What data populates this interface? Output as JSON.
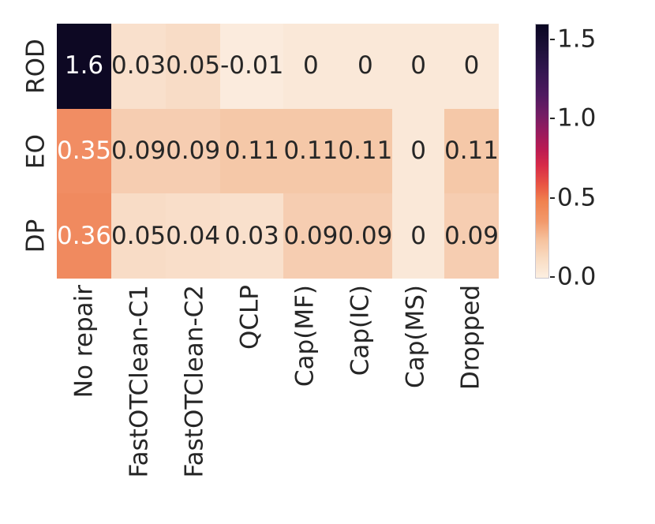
{
  "figure": {
    "background": "#ffffff",
    "text_color": "#262626",
    "annotation_light_color": "#ffffff"
  },
  "chart_data": {
    "type": "heatmap",
    "title": "",
    "xlabel": "",
    "ylabel": "",
    "rows": [
      "ROD",
      "EO",
      "DP"
    ],
    "columns": [
      "No repair",
      "FastOTClean-C1",
      "FastOTClean-C2",
      "QCLP",
      "Cap(MF)",
      "Cap(IC)",
      "Cap(MS)",
      "Dropped"
    ],
    "values": [
      [
        1.6,
        0.03,
        0.05,
        -0.01,
        0,
        0,
        0,
        0
      ],
      [
        0.35,
        0.09,
        0.09,
        0.11,
        0.11,
        0.11,
        0,
        0.11
      ],
      [
        0.36,
        0.05,
        0.04,
        0.03,
        0.09,
        0.09,
        0,
        0.09
      ]
    ],
    "annotations": [
      [
        "1.6",
        "0.03",
        "0.05",
        "-0.01",
        "0",
        "0",
        "0",
        "0"
      ],
      [
        "0.35",
        "0.09",
        "0.09",
        "0.11",
        "0.11",
        "0.11",
        "0",
        "0.11"
      ],
      [
        "0.36",
        "0.05",
        "0.04",
        "0.03",
        "0.09",
        "0.09",
        "0",
        "0.09"
      ]
    ],
    "light_text_values": [
      "1.6",
      "0.35",
      "0.36"
    ],
    "value_colors": {
      "1.6": "#0d0823",
      "0.35": "#f18d63",
      "0.36": "#f08a5f",
      "0.11": "#f5c8a8",
      "0.09": "#f6cdb1",
      "0.05": "#f8dcc6",
      "0.04": "#f9dec9",
      "0.03": "#f9e0cc",
      "0": "#fae8d8",
      "-0.01": "#fbebdd"
    },
    "colorbar": {
      "colormap": "rocket_r",
      "vmin": -0.01,
      "vmax": 1.6,
      "tick_labels": [
        "1.5",
        "1.0",
        "0.5",
        "0.0"
      ],
      "tick_values": [
        1.5,
        1.0,
        0.5,
        0.0
      ],
      "gradient_stops": [
        {
          "pos": 0.0,
          "color": "#0a0622"
        },
        {
          "pos": 0.093,
          "color": "#1c1038"
        },
        {
          "pos": 0.186,
          "color": "#331650"
        },
        {
          "pos": 0.279,
          "color": "#4f1a60"
        },
        {
          "pos": 0.356,
          "color": "#731c64"
        },
        {
          "pos": 0.418,
          "color": "#941b5f"
        },
        {
          "pos": 0.495,
          "color": "#bb1b52"
        },
        {
          "pos": 0.557,
          "color": "#d72a48"
        },
        {
          "pos": 0.635,
          "color": "#e95643"
        },
        {
          "pos": 0.697,
          "color": "#f0814f"
        },
        {
          "pos": 0.777,
          "color": "#f2996b"
        },
        {
          "pos": 0.851,
          "color": "#f6c29e"
        },
        {
          "pos": 0.929,
          "color": "#f9ddc4"
        },
        {
          "pos": 1.0,
          "color": "#fcefe1"
        }
      ]
    }
  }
}
